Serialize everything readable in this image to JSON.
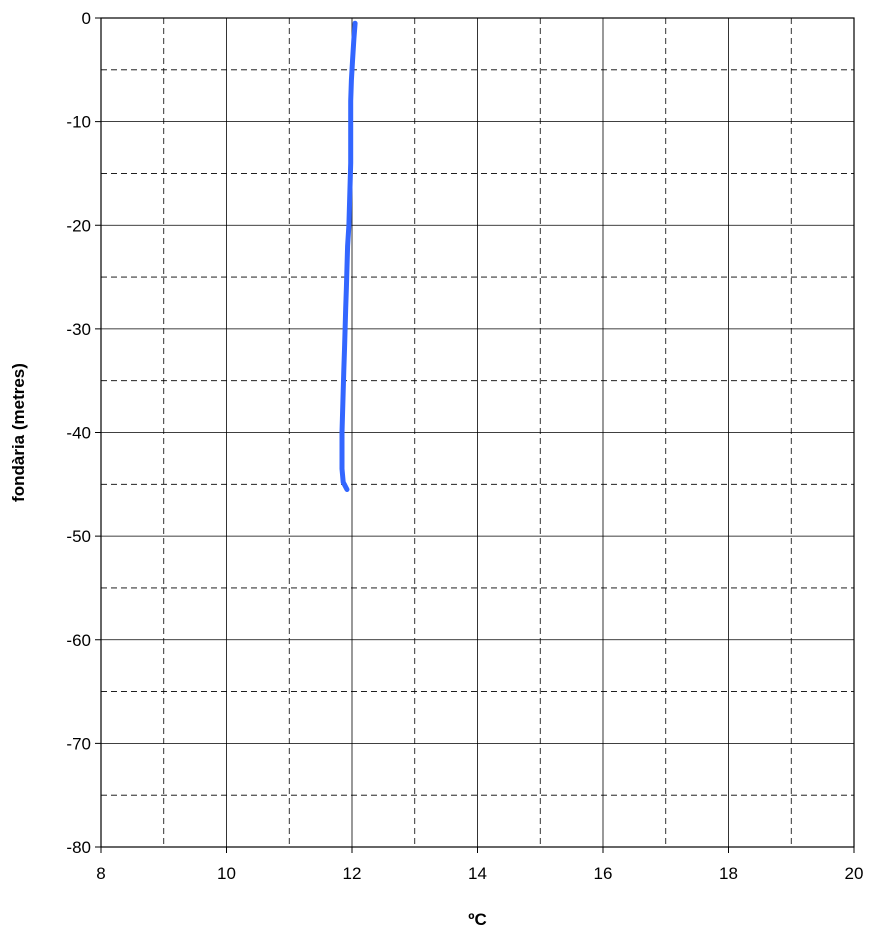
{
  "chart_data": {
    "type": "line",
    "xlabel": "ºC",
    "ylabel": "fondària (metres)",
    "xlim": [
      8,
      20
    ],
    "ylim": [
      -80,
      0
    ],
    "x_major_ticks": [
      8,
      10,
      12,
      14,
      16,
      18,
      20
    ],
    "x_minor_grid": [
      9,
      11,
      13,
      15,
      17,
      19
    ],
    "y_major_ticks": [
      0,
      -10,
      -20,
      -30,
      -40,
      -50,
      -60,
      -70,
      -80
    ],
    "y_minor_grid": [
      -5,
      -15,
      -25,
      -35,
      -45,
      -55,
      -65,
      -75
    ],
    "x_tick_labels": [
      "8",
      "10",
      "12",
      "14",
      "16",
      "18",
      "20"
    ],
    "y_tick_labels": [
      "0",
      "-10",
      "-20",
      "-30",
      "-40",
      "-50",
      "-60",
      "-70",
      "-80"
    ],
    "grid": true,
    "series": [
      {
        "color": "#3366ff",
        "points": [
          [
            12.05,
            -0.5
          ],
          [
            12.03,
            -2
          ],
          [
            12.01,
            -4
          ],
          [
            11.99,
            -6
          ],
          [
            11.98,
            -8
          ],
          [
            11.98,
            -10
          ],
          [
            11.98,
            -12
          ],
          [
            11.98,
            -14
          ],
          [
            11.97,
            -16
          ],
          [
            11.96,
            -18
          ],
          [
            11.95,
            -20
          ],
          [
            11.93,
            -22
          ],
          [
            11.92,
            -24
          ],
          [
            11.91,
            -26
          ],
          [
            11.9,
            -28
          ],
          [
            11.89,
            -30
          ],
          [
            11.88,
            -32
          ],
          [
            11.87,
            -34
          ],
          [
            11.86,
            -36
          ],
          [
            11.85,
            -38
          ],
          [
            11.84,
            -40
          ],
          [
            11.84,
            -42
          ],
          [
            11.84,
            -43.5
          ],
          [
            11.86,
            -44.8
          ],
          [
            11.92,
            -45.5
          ]
        ]
      }
    ]
  }
}
